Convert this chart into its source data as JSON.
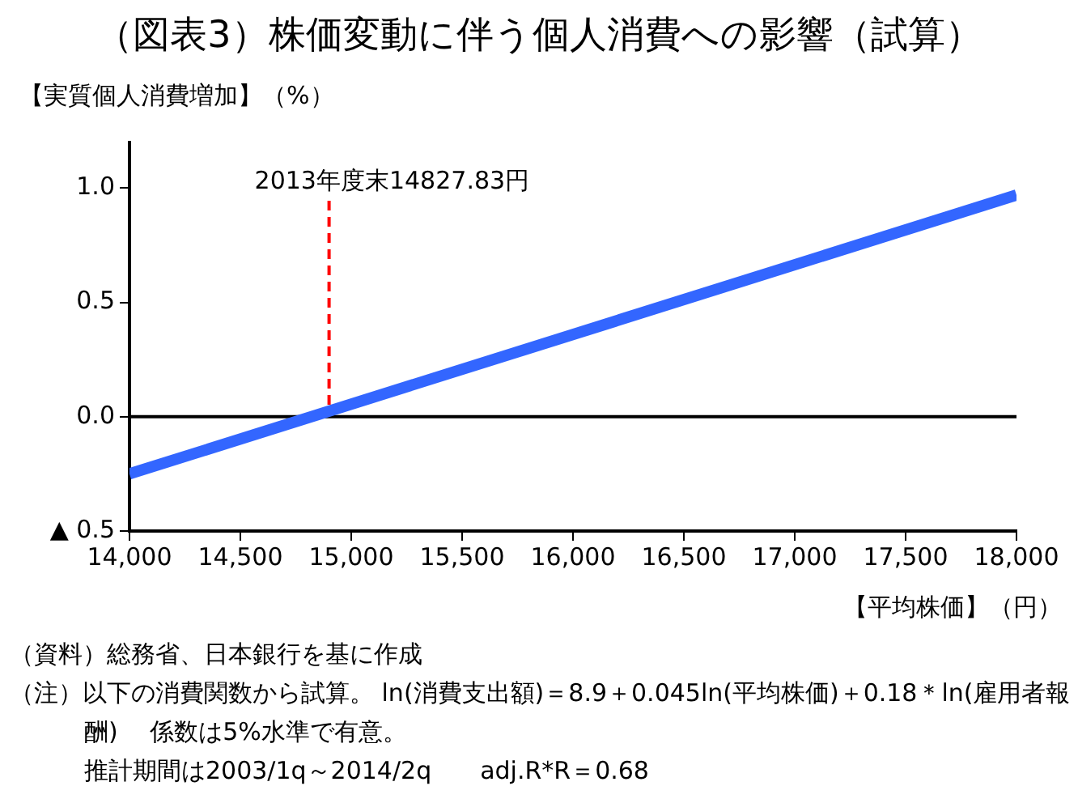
{
  "chart_data": {
    "type": "line",
    "title": "（図表3）株価変動に伴う個人消費への影響（試算）",
    "ylabel": "【実質個人消費増加】（%）",
    "xlabel": "【平均株価】（円）",
    "x": [
      14000,
      18000
    ],
    "series": [
      {
        "color": "#3366ff",
        "values": [
          -0.25,
          0.97
        ]
      }
    ],
    "xlim": [
      14000,
      18000
    ],
    "xticks": [
      {
        "value": 14000,
        "label": "14,000"
      },
      {
        "value": 14500,
        "label": "14,500"
      },
      {
        "value": 15000,
        "label": "15,000"
      },
      {
        "value": 15500,
        "label": "15,500"
      },
      {
        "value": 16000,
        "label": "16,000"
      },
      {
        "value": 16500,
        "label": "16,500"
      },
      {
        "value": 17000,
        "label": "17,000"
      },
      {
        "value": 17500,
        "label": "17,500"
      },
      {
        "value": 18000,
        "label": "18,000"
      }
    ],
    "ylim": [
      -0.5,
      1.2
    ],
    "yticks": [
      {
        "value": -0.5,
        "label": "▲ 0.5"
      },
      {
        "value": 0,
        "label": "0.0"
      },
      {
        "value": 0.5,
        "label": "0.5"
      },
      {
        "value": 1,
        "label": "1.0"
      }
    ],
    "ref_lines": [
      {
        "axis": "x",
        "value": 14900,
        "label": "2013年度末14827.83円",
        "color": "#ff0000",
        "line_style": "dashed"
      },
      {
        "axis": "y",
        "value": 0,
        "color": "#000000",
        "line_style": "solid"
      }
    ],
    "grid": false,
    "legend": false,
    "marker": "none",
    "line_style": "solid",
    "annotations": [
      "（資料）総務省、日本銀行を基に作成",
      "（注）以下の消費関数から試算。 ln(消費支出額)＝8.9＋0.045ln(平均株価)＋0.18＊ln(雇用者報酬)　 係数は5%水準で有意。",
      "推計期間は2003/1q～2014/2q　　adj.R*R＝0.68"
    ]
  }
}
